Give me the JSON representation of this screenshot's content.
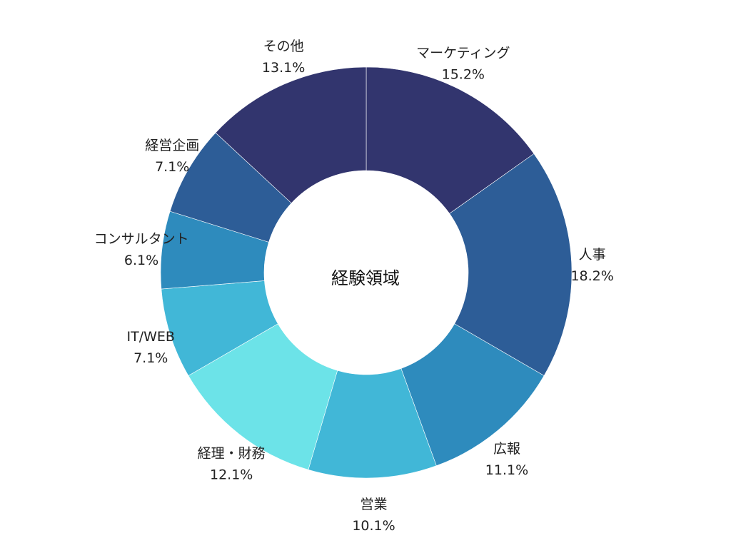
{
  "chart_data": {
    "type": "pie",
    "donut": true,
    "center_label": "経験領域",
    "title": "",
    "start": "12 o'clock",
    "direction": "clockwise",
    "slices": [
      {
        "label": "マーケティング",
        "value": 15.2,
        "display": "15.2%",
        "color": "#32356e"
      },
      {
        "label": "人事",
        "value": 18.2,
        "display": "18.2%",
        "color": "#2d5d97"
      },
      {
        "label": "広報",
        "value": 11.1,
        "display": "11.1%",
        "color": "#2e8bbd"
      },
      {
        "label": "営業",
        "value": 10.1,
        "display": "10.1%",
        "color": "#41b7d7"
      },
      {
        "label": "経理・財務",
        "value": 12.1,
        "display": "12.1%",
        "color": "#6ce3e8"
      },
      {
        "label": "IT/WEB",
        "value": 7.1,
        "display": "7.1%",
        "color": "#41b7d7"
      },
      {
        "label": "コンサルタント",
        "value": 6.1,
        "display": "6.1%",
        "color": "#2e8bbd"
      },
      {
        "label": "経営企画",
        "value": 7.1,
        "display": "7.1%",
        "color": "#2d5d97"
      },
      {
        "label": "その他",
        "value": 13.1,
        "display": "13.1%",
        "color": "#32356e"
      }
    ],
    "legend": "none"
  }
}
